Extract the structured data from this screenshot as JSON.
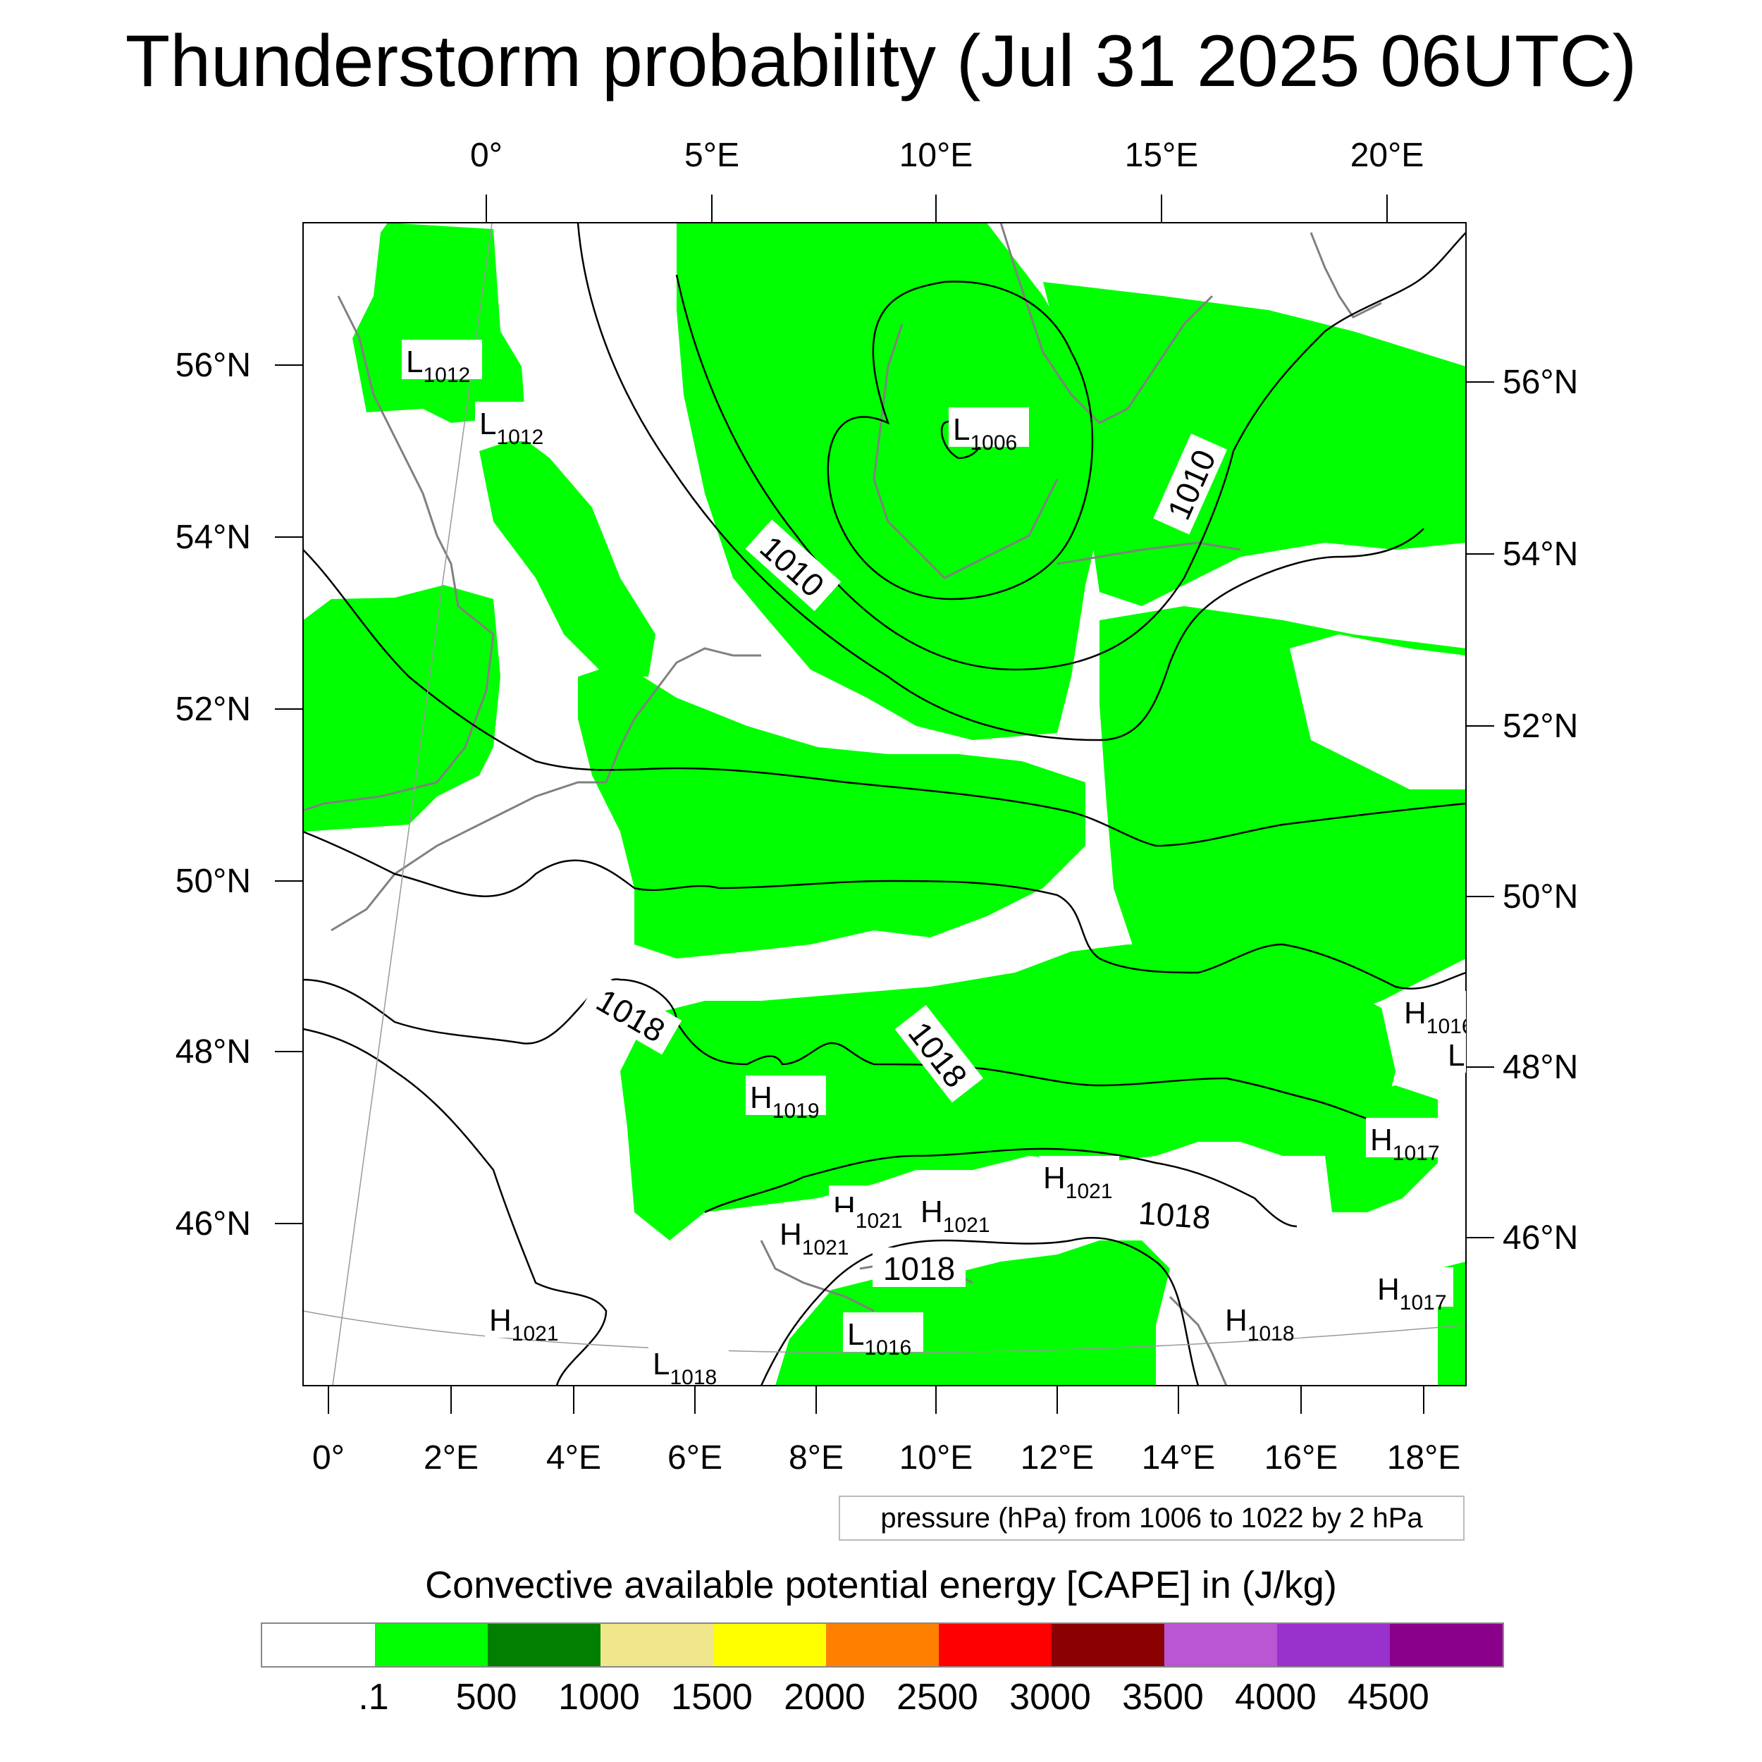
{
  "title": "Thunderstorm probability (Jul 31 2025 06UTC)",
  "top_lon_labels": [
    "0°",
    "5°E",
    "10°E",
    "15°E",
    "20°E"
  ],
  "bottom_lon_labels": [
    "0°",
    "2°E",
    "4°E",
    "6°E",
    "8°E",
    "10°E",
    "12°E",
    "14°E",
    "16°E",
    "18°E"
  ],
  "left_lat_labels": [
    "56°N",
    "54°N",
    "52°N",
    "50°N",
    "48°N",
    "46°N"
  ],
  "right_lat_labels": [
    "56°N",
    "54°N",
    "52°N",
    "50°N",
    "48°N",
    "46°N"
  ],
  "contour_labels": [
    "1010",
    "1010",
    "1018",
    "1018",
    "1018",
    "1018"
  ],
  "pressure_centers": [
    {
      "type": "L",
      "value": "1012"
    },
    {
      "type": "L",
      "value": "1012"
    },
    {
      "type": "L",
      "value": "1006"
    },
    {
      "type": "H",
      "value": "1016"
    },
    {
      "type": "L",
      "value": ""
    },
    {
      "type": "H",
      "value": "1019"
    },
    {
      "type": "H",
      "value": "1017"
    },
    {
      "type": "H",
      "value": "1021"
    },
    {
      "type": "H",
      "value": "1021"
    },
    {
      "type": "H",
      "value": "1021"
    },
    {
      "type": "H",
      "value": "1021"
    },
    {
      "type": "L",
      "value": "1016"
    },
    {
      "type": "H",
      "value": "1018"
    },
    {
      "type": "H",
      "value": "1017"
    },
    {
      "type": "H",
      "value": "1021"
    },
    {
      "type": "L",
      "value": "1018"
    }
  ],
  "contour_info": "pressure (hPa) from 1006 to 1022 by 2 hPa",
  "colorbar": {
    "title": "Convective available potential energy [CAPE] in (J/kg)",
    "colors": [
      "#ffffff",
      "#00ff00",
      "#007f00",
      "#f0e68c",
      "#ffff00",
      "#ff8000",
      "#ff0000",
      "#8b0000",
      "#ba55d3",
      "#9932cc",
      "#8b008b"
    ],
    "labels": [
      ".1",
      "500",
      "1000",
      "1500",
      "2000",
      "2500",
      "3000",
      "3500",
      "4000",
      "4500"
    ]
  },
  "colors": {
    "cape_fill": "#00ff00",
    "coastline": "#808080",
    "isobar": "#000000"
  }
}
